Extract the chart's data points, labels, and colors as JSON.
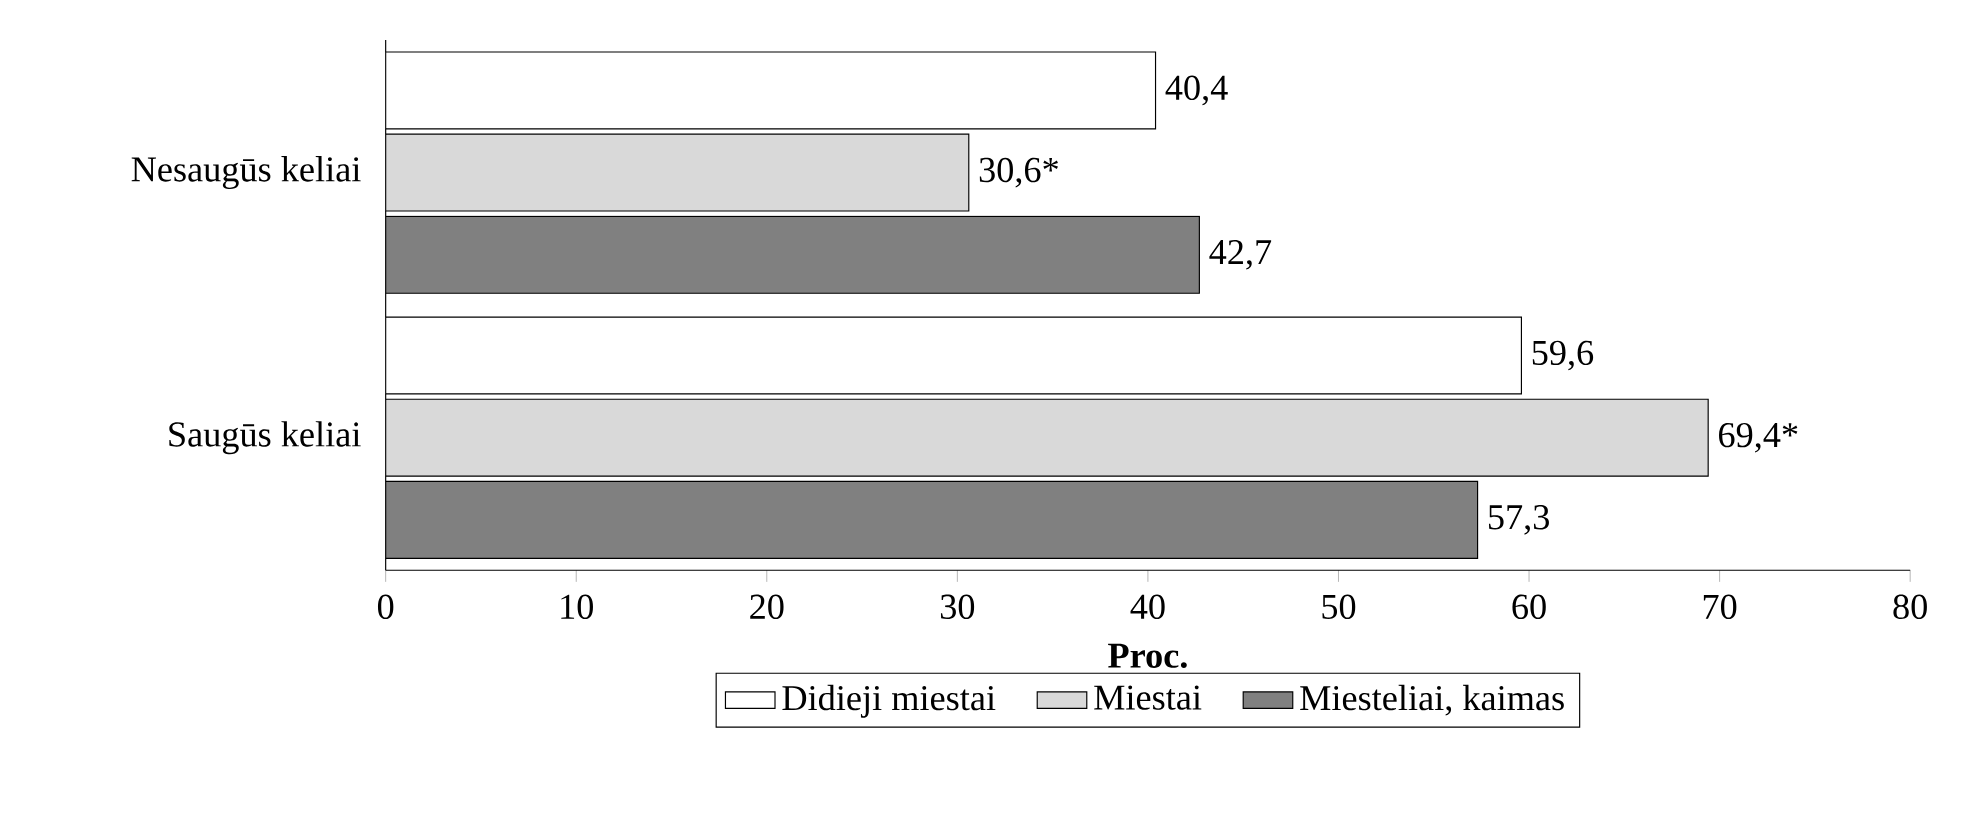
{
  "chart_data": {
    "type": "bar",
    "orientation": "horizontal",
    "categories": [
      "Nesaugūs keliai",
      "Saugūs keliai"
    ],
    "series": [
      {
        "name": "Didieji miestai",
        "color": "#ffffff",
        "values": [
          40.4,
          59.6
        ],
        "value_labels": [
          "40,4",
          "59,6"
        ]
      },
      {
        "name": "Miestai",
        "color": "#d9d9d9",
        "values": [
          30.6,
          69.4
        ],
        "value_labels": [
          "30,6*",
          "69,4*"
        ]
      },
      {
        "name": "Miesteliai, kaimas",
        "color": "#808080",
        "values": [
          42.7,
          57.3
        ],
        "value_labels": [
          "42,7",
          "57,3"
        ]
      }
    ],
    "xlim": [
      0,
      80
    ],
    "xticks": [
      0,
      10,
      20,
      30,
      40,
      50,
      60,
      70,
      80
    ],
    "xlabel": "**Proc.**",
    "legend": "bottom"
  }
}
